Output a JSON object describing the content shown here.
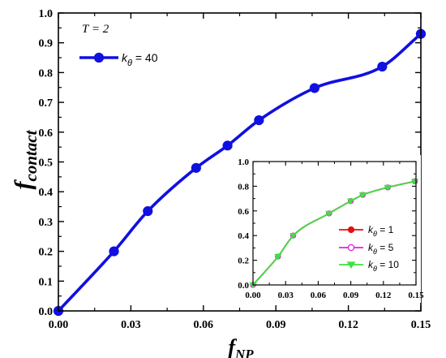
{
  "chart_data": [
    {
      "type": "line",
      "annotation": "T = 2",
      "xlabel": {
        "main": "f",
        "sub": "NP"
      },
      "ylabel": {
        "main": "f",
        "sub": "contact"
      },
      "xlim": [
        0,
        0.15
      ],
      "ylim": [
        0,
        1.0
      ],
      "xticks": [
        "0.00",
        "0.03",
        "0.06",
        "0.09",
        "0.12",
        "0.15"
      ],
      "yticks": [
        "0.0",
        "0.1",
        "0.2",
        "0.3",
        "0.4",
        "0.5",
        "0.6",
        "0.7",
        "0.8",
        "0.9",
        "1.0"
      ],
      "legend_position": "top-left",
      "series": [
        {
          "name": "k_θ = 40",
          "name_parts": {
            "k": "k",
            "sub": "θ",
            "rest": " = 40"
          },
          "color": "#1010e0",
          "marker": "circle-filled",
          "x": [
            0.0,
            0.023,
            0.037,
            0.057,
            0.07,
            0.083,
            0.106,
            0.134,
            0.15
          ],
          "y": [
            0.0,
            0.2,
            0.335,
            0.48,
            0.555,
            0.64,
            0.748,
            0.82,
            0.93
          ]
        }
      ]
    },
    {
      "type": "line",
      "inset": true,
      "xlim": [
        0,
        0.15
      ],
      "ylim": [
        0,
        1.0
      ],
      "xticks": [
        "0.00",
        "0.03",
        "0.06",
        "0.09",
        "0.12",
        "0.15"
      ],
      "yticks": [
        "0.0",
        "0.2",
        "0.4",
        "0.6",
        "0.8",
        "1.0"
      ],
      "legend_position": "bottom-left",
      "series": [
        {
          "name": "k_θ = 1",
          "name_parts": {
            "k": "k",
            "sub": "θ",
            "rest": " = 1"
          },
          "color": "#e01010",
          "marker": "circle-filled",
          "x": [
            0.0,
            0.023,
            0.037,
            0.07,
            0.09,
            0.101,
            0.124,
            0.149
          ],
          "y": [
            0.0,
            0.23,
            0.4,
            0.58,
            0.68,
            0.73,
            0.79,
            0.84
          ]
        },
        {
          "name": "k_θ = 5",
          "name_parts": {
            "k": "k",
            "sub": "θ",
            "rest": " = 5"
          },
          "color": "#e020e0",
          "marker": "circle-open",
          "x": [
            0.0,
            0.023,
            0.037,
            0.07,
            0.09,
            0.101,
            0.124,
            0.149
          ],
          "y": [
            0.0,
            0.23,
            0.4,
            0.58,
            0.68,
            0.73,
            0.79,
            0.84
          ]
        },
        {
          "name": "k_θ = 10",
          "name_parts": {
            "k": "k",
            "sub": "θ",
            "rest": " = 10"
          },
          "color": "#40e040",
          "marker": "triangle-down",
          "x": [
            0.0,
            0.023,
            0.037,
            0.07,
            0.09,
            0.101,
            0.124,
            0.149
          ],
          "y": [
            0.0,
            0.23,
            0.4,
            0.58,
            0.68,
            0.73,
            0.79,
            0.84
          ]
        }
      ]
    }
  ]
}
